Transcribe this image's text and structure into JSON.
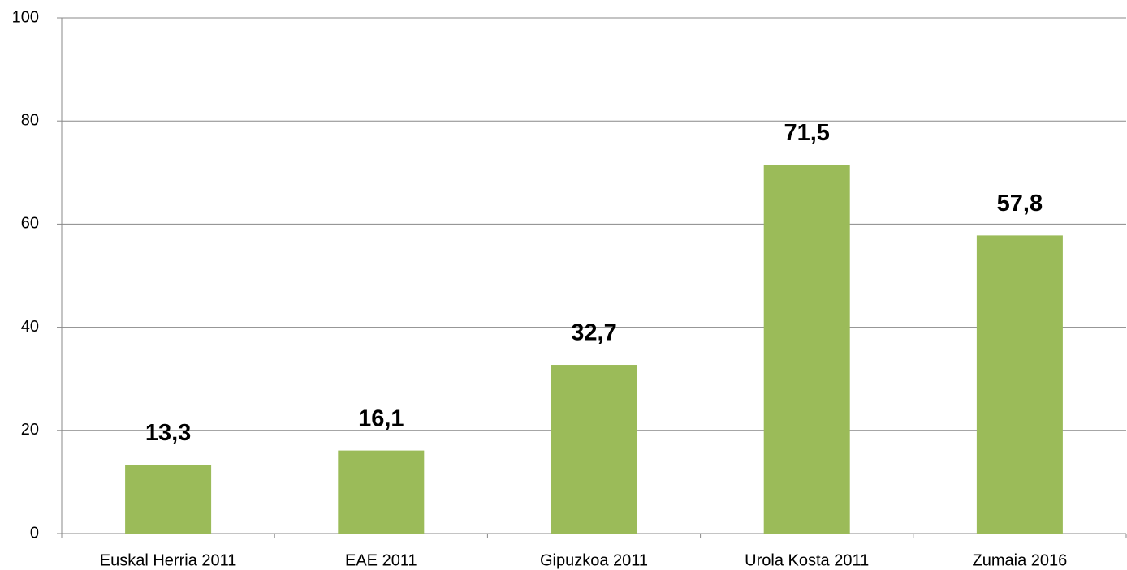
{
  "chart_data": {
    "type": "bar",
    "categories": [
      "Euskal Herria 2011",
      "EAE 2011",
      "Gipuzkoa 2011",
      "Urola Kosta 2011",
      "Zumaia 2016"
    ],
    "values": [
      13.3,
      16.1,
      32.7,
      71.5,
      57.8
    ],
    "value_labels": [
      "13,3",
      "16,1",
      "32,7",
      "71,5",
      "57,8"
    ],
    "color": "#9bbb59",
    "ylim": [
      0,
      100
    ],
    "yticks": [
      0,
      20,
      40,
      60,
      80,
      100
    ],
    "grid": true
  }
}
